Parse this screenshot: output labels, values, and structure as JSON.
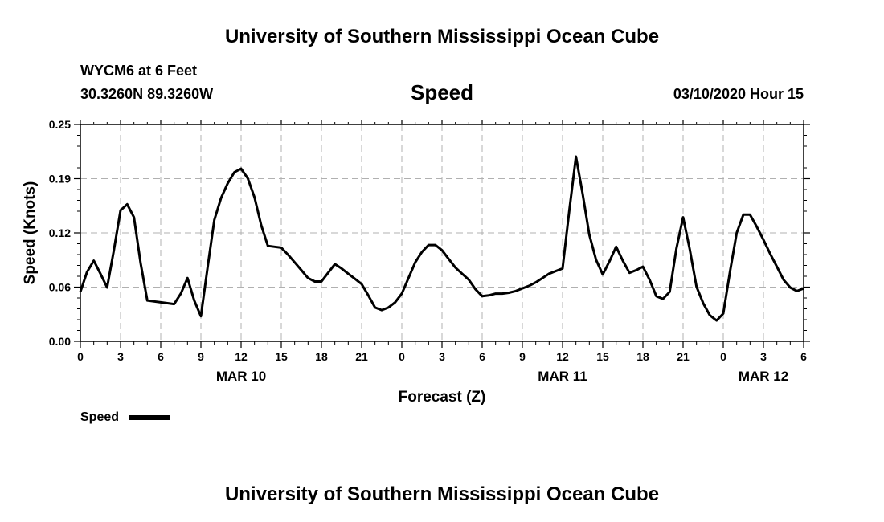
{
  "header": {
    "top_title": "University of Southern Mississippi Ocean Cube",
    "station": "WYCM6 at 6 Feet",
    "coords": "30.3260N 89.3260W",
    "parameter": "Speed",
    "datetime": "03/10/2020 Hour 15"
  },
  "footer": {
    "bottom_title": "University of Southern Mississippi Ocean Cube"
  },
  "legend": {
    "label": "Speed",
    "position": "bottom-left"
  },
  "chart_data": {
    "type": "line",
    "xlabel": "Forecast (Z)",
    "ylabel": "Speed (Knots)",
    "ylim": [
      0,
      0.25
    ],
    "xlim": [
      0,
      54
    ],
    "x_unit": "hours from 03/10/2020 00Z",
    "grid": true,
    "yticks": [
      "0.00",
      "0.06",
      "0.12",
      "0.19",
      "0.25"
    ],
    "xticks": [
      {
        "x": 0,
        "label": "0"
      },
      {
        "x": 3,
        "label": "3"
      },
      {
        "x": 6,
        "label": "6"
      },
      {
        "x": 9,
        "label": "9"
      },
      {
        "x": 12,
        "label": "12"
      },
      {
        "x": 15,
        "label": "15"
      },
      {
        "x": 18,
        "label": "18"
      },
      {
        "x": 21,
        "label": "21"
      },
      {
        "x": 24,
        "label": "0"
      },
      {
        "x": 27,
        "label": "3"
      },
      {
        "x": 30,
        "label": "6"
      },
      {
        "x": 33,
        "label": "9"
      },
      {
        "x": 36,
        "label": "12"
      },
      {
        "x": 39,
        "label": "15"
      },
      {
        "x": 42,
        "label": "18"
      },
      {
        "x": 45,
        "label": "21"
      },
      {
        "x": 48,
        "label": "0"
      },
      {
        "x": 51,
        "label": "3"
      },
      {
        "x": 54,
        "label": "6"
      }
    ],
    "date_labels": [
      {
        "x": 12,
        "label": "MAR 10"
      },
      {
        "x": 36,
        "label": "MAR 11"
      },
      {
        "x": 51,
        "label": "MAR 12"
      }
    ],
    "series": [
      {
        "name": "Speed",
        "color": "#000000",
        "x": [
          0,
          0.5,
          1,
          1.5,
          2,
          2.5,
          3,
          3.5,
          4,
          4.5,
          5,
          5.5,
          6,
          6.5,
          7,
          7.5,
          8,
          8.5,
          9,
          9.5,
          10,
          10.5,
          11,
          11.5,
          12,
          12.5,
          13,
          13.5,
          14,
          14.5,
          15,
          15.5,
          16,
          16.5,
          17,
          17.5,
          18,
          18.5,
          19,
          19.5,
          20,
          20.5,
          21,
          21.5,
          22,
          22.5,
          23,
          23.5,
          24,
          24.5,
          25,
          25.5,
          26,
          26.5,
          27,
          27.5,
          28,
          28.5,
          29,
          29.5,
          30,
          30.5,
          31,
          31.5,
          32,
          32.5,
          33,
          33.5,
          34,
          34.5,
          35,
          35.5,
          36,
          36.5,
          37,
          37.5,
          38,
          38.5,
          39,
          39.5,
          40,
          40.5,
          41,
          41.5,
          42,
          42.5,
          43,
          43.5,
          44,
          44.5,
          45,
          45.5,
          46,
          46.5,
          47,
          47.5,
          48,
          48.5,
          49,
          49.5,
          50,
          50.5,
          51,
          51.5,
          52,
          52.5,
          53,
          53.5,
          54
        ],
        "values": [
          0.057,
          0.08,
          0.093,
          0.078,
          0.062,
          0.105,
          0.151,
          0.158,
          0.143,
          0.09,
          0.047,
          0.046,
          0.045,
          0.044,
          0.043,
          0.055,
          0.073,
          0.047,
          0.029,
          0.085,
          0.14,
          0.165,
          0.182,
          0.195,
          0.199,
          0.188,
          0.166,
          0.134,
          0.11,
          0.109,
          0.108,
          0.1,
          0.091,
          0.082,
          0.073,
          0.069,
          0.069,
          0.079,
          0.089,
          0.084,
          0.078,
          0.072,
          0.066,
          0.053,
          0.039,
          0.036,
          0.039,
          0.045,
          0.055,
          0.073,
          0.091,
          0.103,
          0.111,
          0.111,
          0.105,
          0.095,
          0.085,
          0.078,
          0.071,
          0.06,
          0.052,
          0.053,
          0.055,
          0.055,
          0.056,
          0.058,
          0.061,
          0.064,
          0.068,
          0.073,
          0.078,
          0.081,
          0.084,
          0.15,
          0.213,
          0.17,
          0.123,
          0.094,
          0.077,
          0.092,
          0.109,
          0.093,
          0.079,
          0.082,
          0.086,
          0.071,
          0.052,
          0.049,
          0.057,
          0.107,
          0.143,
          0.106,
          0.063,
          0.044,
          0.03,
          0.024,
          0.032,
          0.08,
          0.125,
          0.146,
          0.146,
          0.132,
          0.117,
          0.101,
          0.086,
          0.071,
          0.062,
          0.058,
          0.061
        ]
      }
    ]
  }
}
